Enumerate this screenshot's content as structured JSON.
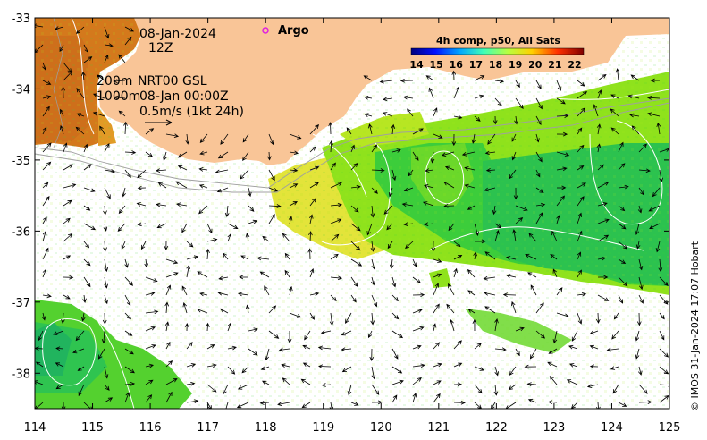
{
  "map": {
    "date": "08-Jan-2024",
    "hour": "12Z",
    "argo_label": "Argo",
    "depth_200": "200m",
    "depth_1000": "1000m",
    "model_line": "NRT00 GSL",
    "model_time": "08-Jan 00:00Z",
    "scale_label": "0.5m/s (1kt 24h)",
    "credit": "© IMOS 31-Jan-2024 17:07 Hobart",
    "lon_labels": [
      "114",
      "115",
      "116",
      "117",
      "118",
      "119",
      "120",
      "121",
      "122",
      "123",
      "124",
      "125"
    ],
    "lat_labels": [
      "-33",
      "-34",
      "-35",
      "-36",
      "-37",
      "-38"
    ],
    "lon_range": [
      114,
      125
    ],
    "lat_range": [
      -38.5,
      -33
    ],
    "colors": {
      "land": "#f9c597",
      "argo": "#e020e0",
      "contour": "#ffffff",
      "isobath": "#a0a0a0"
    }
  },
  "colorbar": {
    "title": "4h comp, p50, All Sats",
    "tick_labels": [
      "14",
      "15",
      "16",
      "17",
      "18",
      "19",
      "20",
      "21",
      "22"
    ],
    "range": [
      14,
      22
    ],
    "colors": [
      "#00007f",
      "#0010ff",
      "#00a4ff",
      "#40ffb7",
      "#b7ff40",
      "#ffb900",
      "#ff3000",
      "#7f0000"
    ]
  }
}
